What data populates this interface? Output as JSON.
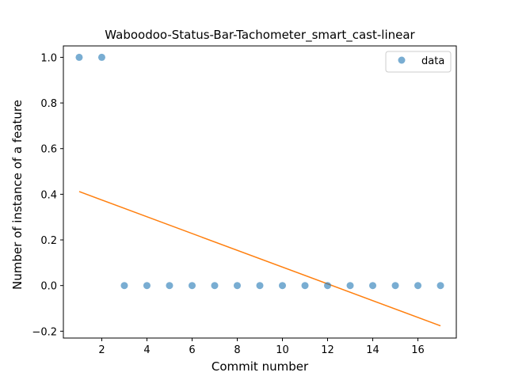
{
  "chart_data": {
    "type": "scatter",
    "title": "Waboodoo-Status-Bar-Tachometer_smart_cast-linear",
    "xlabel": "Commit number",
    "ylabel": "Number of instance of a feature",
    "xlim": [
      0.3,
      17.7
    ],
    "ylim": [
      -0.23,
      1.05
    ],
    "x_ticks": [
      2,
      4,
      6,
      8,
      10,
      12,
      14,
      16
    ],
    "y_ticks": [
      -0.2,
      0.0,
      0.2,
      0.4,
      0.6,
      0.8,
      1.0
    ],
    "x_tick_labels": [
      "2",
      "4",
      "6",
      "8",
      "10",
      "12",
      "14",
      "16"
    ],
    "y_tick_labels": [
      "−0.2",
      "0.0",
      "0.2",
      "0.4",
      "0.6",
      "0.8",
      "1.0"
    ],
    "series": [
      {
        "name": "data",
        "kind": "scatter",
        "color": "#1f77b4",
        "x": [
          1,
          2,
          3,
          4,
          5,
          6,
          7,
          8,
          9,
          10,
          11,
          12,
          13,
          14,
          15,
          16,
          17
        ],
        "y": [
          1,
          1,
          0,
          0,
          0,
          0,
          0,
          0,
          0,
          0,
          0,
          0,
          0,
          0,
          0,
          0,
          0
        ]
      },
      {
        "kind": "line",
        "color": "#ff7f0e",
        "x": [
          1,
          17
        ],
        "y": [
          0.4118,
          -0.1765
        ]
      }
    ],
    "legend": {
      "placement": "top-right",
      "entries": [
        "data"
      ]
    },
    "grid": false
  }
}
